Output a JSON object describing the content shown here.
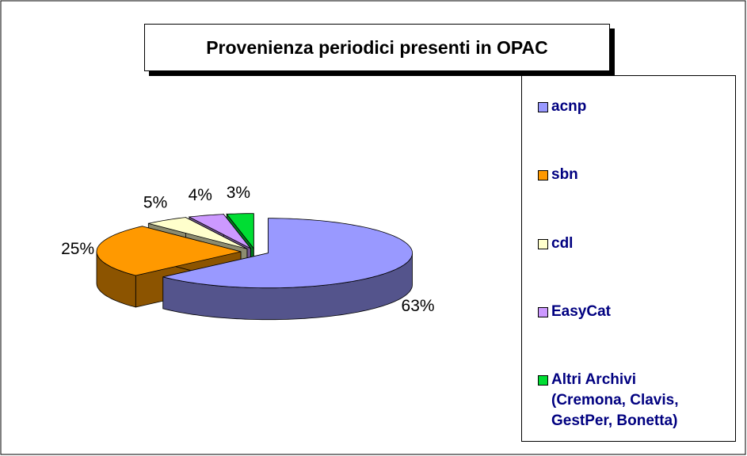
{
  "chart_data": {
    "type": "pie",
    "title": "Provenienza periodici presenti in OPAC",
    "categories": [
      "acnp",
      "sbn",
      "cdl",
      "EasyCat",
      "Altri Archivi (Cremona, Clavis, GestPer, Bonetta)"
    ],
    "values": [
      63,
      25,
      5,
      4,
      3
    ],
    "value_labels": [
      "63%",
      "25%",
      "5%",
      "4%",
      "3%"
    ],
    "colors": [
      "#9999ff",
      "#ff9900",
      "#ffffcc",
      "#cc99ff",
      "#00dd33"
    ],
    "legend": "right"
  }
}
